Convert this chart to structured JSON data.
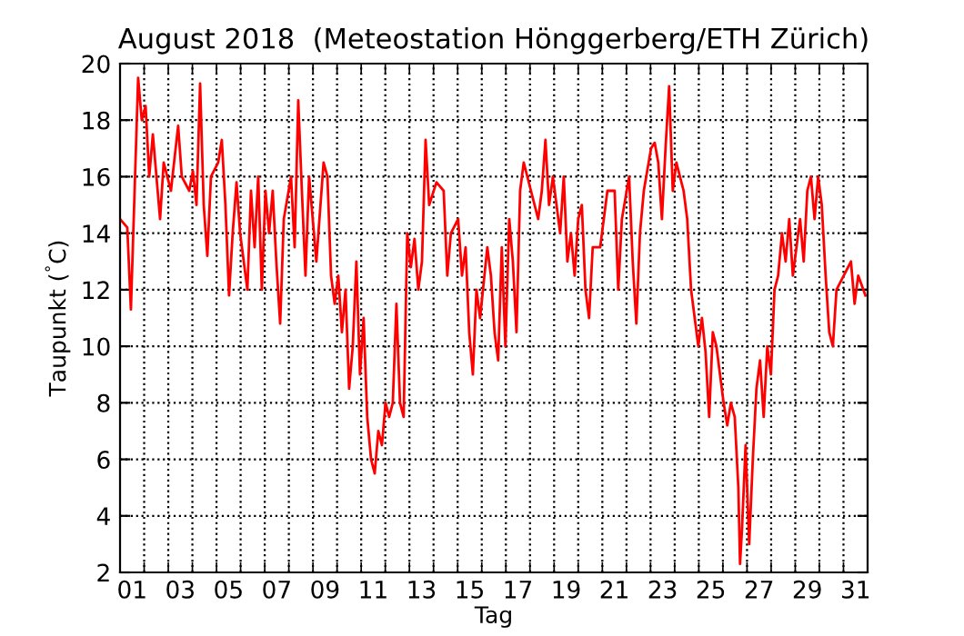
{
  "chart_data": {
    "type": "line",
    "title": "August 2018  (Meteostation Hönggerberg/ETH Zürich)",
    "xlabel": "Tag",
    "ylabel": "Taupunkt ($^{°}$C)",
    "xlim": [
      1,
      32
    ],
    "ylim": [
      2,
      20
    ],
    "yticks": [
      2,
      4,
      6,
      8,
      10,
      12,
      14,
      16,
      18,
      20
    ],
    "xticks": [
      {
        "value": 1.5,
        "label": "01"
      },
      {
        "value": 3.5,
        "label": "03"
      },
      {
        "value": 5.5,
        "label": "05"
      },
      {
        "value": 7.5,
        "label": "07"
      },
      {
        "value": 9.5,
        "label": "09"
      },
      {
        "value": 11.5,
        "label": "11"
      },
      {
        "value": 13.5,
        "label": "13"
      },
      {
        "value": 15.5,
        "label": "15"
      },
      {
        "value": 17.5,
        "label": "17"
      },
      {
        "value": 19.5,
        "label": "19"
      },
      {
        "value": 21.5,
        "label": "21"
      },
      {
        "value": 23.5,
        "label": "23"
      },
      {
        "value": 25.5,
        "label": "25"
      },
      {
        "value": 27.5,
        "label": "27"
      },
      {
        "value": 29.5,
        "label": "29"
      },
      {
        "value": 31.5,
        "label": "31"
      },
      {
        "value": 2,
        "label": null
      },
      {
        "value": 3,
        "label": null
      },
      {
        "value": 4,
        "label": null
      },
      {
        "value": 5,
        "label": null
      },
      {
        "value": 6,
        "label": null
      },
      {
        "value": 7,
        "label": null
      },
      {
        "value": 8,
        "label": null
      },
      {
        "value": 9,
        "label": null
      },
      {
        "value": 10,
        "label": null
      },
      {
        "value": 11,
        "label": null
      },
      {
        "value": 12,
        "label": null
      },
      {
        "value": 13,
        "label": null
      },
      {
        "value": 14,
        "label": null
      },
      {
        "value": 15,
        "label": null
      },
      {
        "value": 16,
        "label": null
      },
      {
        "value": 17,
        "label": null
      },
      {
        "value": 18,
        "label": null
      },
      {
        "value": 19,
        "label": null
      },
      {
        "value": 20,
        "label": null
      },
      {
        "value": 21,
        "label": null
      },
      {
        "value": 22,
        "label": null
      },
      {
        "value": 23,
        "label": null
      },
      {
        "value": 24,
        "label": null
      },
      {
        "value": 25,
        "label": null
      },
      {
        "value": 26,
        "label": null
      },
      {
        "value": 27,
        "label": null
      },
      {
        "value": 28,
        "label": null
      },
      {
        "value": 29,
        "label": null
      },
      {
        "value": 30,
        "label": null
      },
      {
        "value": 31,
        "label": null
      }
    ],
    "grid": true,
    "marker": "none",
    "line_style": "solid",
    "series": [
      {
        "color": "#ff0000",
        "x": [
          1.0,
          1.3,
          1.45,
          1.75,
          1.9,
          2.06,
          2.21,
          2.36,
          2.66,
          2.81,
          3.11,
          3.41,
          3.56,
          3.87,
          4.02,
          4.17,
          4.32,
          4.47,
          4.62,
          4.77,
          5.07,
          5.22,
          5.37,
          5.52,
          5.67,
          5.83,
          5.98,
          6.28,
          6.43,
          6.58,
          6.73,
          6.88,
          7.03,
          7.18,
          7.33,
          7.48,
          7.64,
          7.79,
          8.09,
          8.24,
          8.39,
          8.54,
          8.69,
          8.84,
          8.99,
          9.14,
          9.44,
          9.6,
          9.75,
          9.9,
          10.05,
          10.2,
          10.35,
          10.5,
          10.65,
          10.8,
          10.95,
          11.1,
          11.25,
          11.41,
          11.56,
          11.71,
          11.86,
          12.01,
          12.16,
          12.31,
          12.46,
          12.61,
          12.76,
          12.91,
          13.06,
          13.21,
          13.37,
          13.52,
          13.67,
          13.82,
          14.12,
          14.42,
          14.57,
          14.72,
          15.02,
          15.18,
          15.33,
          15.48,
          15.63,
          15.78,
          15.93,
          16.23,
          16.38,
          16.53,
          16.68,
          16.83,
          16.98,
          17.14,
          17.29,
          17.44,
          17.59,
          17.74,
          18.04,
          18.34,
          18.49,
          18.64,
          18.79,
          18.95,
          19.25,
          19.4,
          19.55,
          19.7,
          19.85,
          20.0,
          20.15,
          20.3,
          20.45,
          20.6,
          20.91,
          21.21,
          21.51,
          21.66,
          21.81,
          22.11,
          22.26,
          22.41,
          22.56,
          22.72,
          23.02,
          23.17,
          23.32,
          23.47,
          23.62,
          23.77,
          23.92,
          24.07,
          24.37,
          24.52,
          24.68,
          24.83,
          24.98,
          25.13,
          25.28,
          25.43,
          25.58,
          25.73,
          25.88,
          26.03,
          26.18,
          26.33,
          26.49,
          26.64,
          26.71,
          26.79,
          26.94,
          27.09,
          27.24,
          27.39,
          27.54,
          27.69,
          27.84,
          27.99,
          28.14,
          28.29,
          28.45,
          28.6,
          28.75,
          28.9,
          29.2,
          29.35,
          29.5,
          29.65,
          29.8,
          29.95,
          30.1,
          30.26,
          30.41,
          30.56,
          30.71,
          31.01,
          31.31,
          31.46,
          31.61,
          31.91
        ],
        "values": [
          14.5,
          14.2,
          11.3,
          19.5,
          18,
          18.5,
          16,
          17.5,
          14.5,
          16.5,
          15.5,
          17.8,
          16,
          15.5,
          16.2,
          15,
          19.3,
          15,
          13.2,
          16,
          16.5,
          17.3,
          15,
          11.8,
          14,
          15.8,
          14,
          12,
          15.5,
          13.5,
          16,
          12,
          15.5,
          14,
          15.5,
          13,
          10.8,
          14.5,
          16,
          13.5,
          18.7,
          15.5,
          12.5,
          16,
          14.5,
          13,
          16.5,
          16,
          12.5,
          11.5,
          12.5,
          10.5,
          12,
          8.5,
          10,
          13,
          9,
          11,
          7.5,
          6,
          5.5,
          7,
          6.5,
          8,
          7.5,
          8,
          11.5,
          8,
          7.5,
          14,
          12.8,
          13.8,
          12,
          13,
          17.3,
          15,
          15.8,
          15.5,
          12.5,
          14,
          14.5,
          12.5,
          13.5,
          10.5,
          9,
          12,
          11,
          13.5,
          12.5,
          10.5,
          9.5,
          13.5,
          10,
          14.5,
          13,
          10.5,
          15.5,
          16.5,
          15.5,
          14.5,
          15.5,
          17.3,
          15,
          16,
          14,
          16,
          13,
          14,
          12.5,
          14.5,
          15,
          12,
          11,
          13.5,
          13.5,
          15.5,
          15.5,
          12,
          14.5,
          16,
          13,
          10.8,
          14,
          15.5,
          17,
          17.2,
          16.5,
          14.5,
          17,
          19.2,
          15.5,
          16.5,
          15.5,
          14.5,
          12,
          11,
          10,
          11,
          9.8,
          7.5,
          10.5,
          10,
          9,
          8,
          7.2,
          8,
          7.5,
          5,
          2.3,
          3.5,
          6.5,
          3,
          6,
          8.5,
          9.5,
          7.5,
          10,
          9,
          12,
          12.5,
          14,
          13,
          14.5,
          12.5,
          14.5,
          13,
          15.5,
          16,
          14.5,
          16,
          15,
          12.5,
          10.5,
          10,
          12,
          12.5,
          13,
          11.5,
          12.5,
          11.8
        ]
      }
    ]
  }
}
